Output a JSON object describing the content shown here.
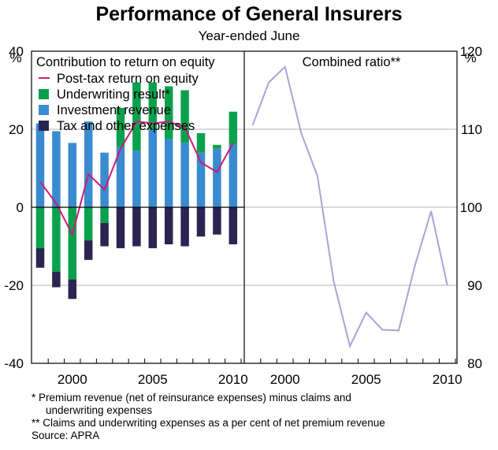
{
  "title": "Performance of General Insurers",
  "subtitle": "Year-ended June",
  "left_unit": "%",
  "right_unit": "%",
  "chart_data": [
    {
      "type": "bar",
      "panel_title": "Contribution to return on equity",
      "x": [
        1998,
        1999,
        2000,
        2001,
        2002,
        2003,
        2004,
        2005,
        2006,
        2007,
        2008,
        2009,
        2010
      ],
      "x_tick_labels": [
        "2000",
        "2005",
        "2010"
      ],
      "x_tick_values": [
        2000,
        2005,
        2010
      ],
      "ylim": [
        -40,
        40
      ],
      "y_ticks": [
        -40,
        -20,
        0,
        20,
        40
      ],
      "y_tick_labels": [
        "-40",
        "-20",
        "0",
        "20",
        "40"
      ],
      "series": [
        {
          "name": "Investment revenue",
          "color": "#3a8bd0",
          "values": [
            21.5,
            19.5,
            16.5,
            22,
            14,
            15.5,
            14.5,
            20,
            17.5,
            16.5,
            14,
            15,
            16
          ]
        },
        {
          "name": "Underwriting result*",
          "color": "#0aa14d",
          "values": [
            -10.5,
            -16.5,
            -18.5,
            -8.5,
            -4,
            10,
            17.5,
            12,
            13.5,
            13.5,
            5,
            1,
            8.5
          ]
        },
        {
          "name": "Tax and other expenses",
          "color": "#2a2550",
          "values": [
            -5,
            -4,
            -5,
            -5,
            -6,
            -10.5,
            -10,
            -10.5,
            -9.5,
            -10,
            -7.5,
            -7,
            -9.5
          ]
        }
      ],
      "line_series": {
        "name": "Post-tax return on equity",
        "color": "#cc1a7a",
        "values": [
          6.5,
          1,
          -7,
          8.5,
          4.5,
          15,
          22,
          21.5,
          22,
          20.5,
          11.5,
          9,
          16.5
        ]
      }
    },
    {
      "type": "line",
      "panel_title": "Combined ratio**",
      "x": [
        1998,
        1999,
        2000,
        2001,
        2002,
        2003,
        2004,
        2005,
        2006,
        2007,
        2008,
        2009,
        2010
      ],
      "x_tick_labels": [
        "2000",
        "2005",
        "2010"
      ],
      "x_tick_values": [
        2000,
        2005,
        2010
      ],
      "ylim": [
        80,
        120
      ],
      "y_ticks": [
        80,
        90,
        100,
        110,
        120
      ],
      "y_tick_labels": [
        "80",
        "90",
        "100",
        "110",
        "120"
      ],
      "series": [
        {
          "name": "Combined ratio",
          "color": "#a8a5d6",
          "values": [
            110.5,
            116,
            118,
            109.5,
            104,
            90.5,
            82.2,
            86.5,
            84.3,
            84.2,
            92.5,
            99.5,
            90
          ]
        }
      ]
    }
  ],
  "notes": {
    "n1_a": "*   Premium revenue (net of reinsurance expenses) minus claims and",
    "n1_b": "underwriting expenses",
    "n2": "** Claims and underwriting expenses as a per cent of net premium revenue",
    "source": "Source: APRA"
  }
}
